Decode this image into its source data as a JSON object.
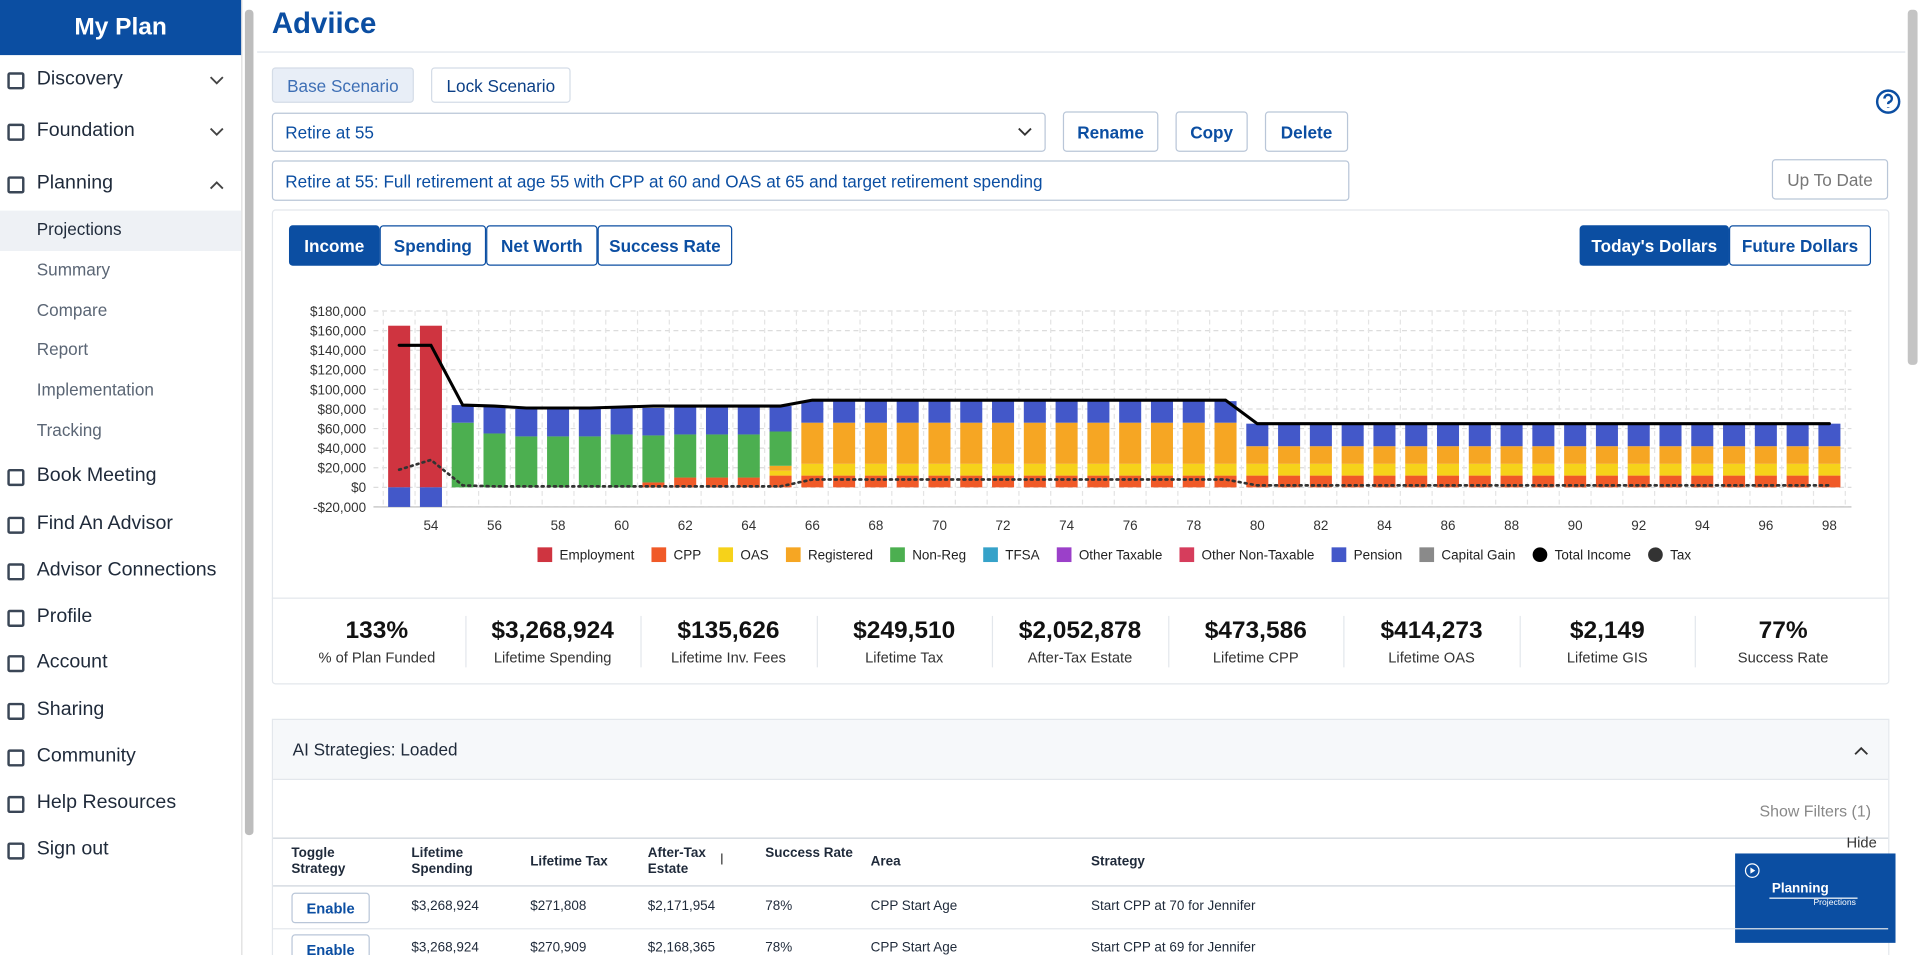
{
  "sidebar": {
    "title": "My Plan",
    "menu": [
      "Discovery",
      "Foundation",
      "Planning"
    ],
    "planning_items": [
      "Projections",
      "Summary",
      "Compare",
      "Report",
      "Implementation",
      "Tracking"
    ],
    "links": [
      "Book Meeting",
      "Find An Advisor",
      "Advisor Connections",
      "Profile",
      "Account",
      "Sharing",
      "Community",
      "Help Resources",
      "Sign out"
    ]
  },
  "header": {
    "title": "Adviice"
  },
  "scenario": {
    "tabs": [
      "Base Scenario",
      "Lock Scenario"
    ],
    "selected": "Retire at 55",
    "actions": [
      "Rename",
      "Copy",
      "Delete"
    ],
    "description": "Retire at 55: Full retirement at age 55 with CPP at 60 and OAS at 65 and target retirement spending",
    "status": "Up To Date"
  },
  "views": [
    "Income",
    "Spending",
    "Net Worth",
    "Success Rate"
  ],
  "dollars": [
    "Today's Dollars",
    "Future Dollars"
  ],
  "chart_data": {
    "type": "bar",
    "stacked": true,
    "categories": [
      null,
      "54",
      null,
      "56",
      null,
      "58",
      null,
      "60",
      null,
      "62",
      null,
      "64",
      null,
      "66",
      null,
      "68",
      null,
      "70",
      null,
      "72",
      null,
      "74",
      null,
      "76",
      null,
      "78",
      null,
      "80",
      null,
      "82",
      null,
      "84",
      null,
      "86",
      null,
      "88",
      null,
      "90",
      null,
      "92",
      null,
      "94",
      null,
      "96",
      null,
      "98"
    ],
    "ylim": [
      -20000,
      180000
    ],
    "yticks": [
      {
        "value": -20000,
        "label": "-$20,000"
      },
      {
        "value": 0,
        "label": "$0"
      },
      {
        "value": 20000,
        "label": "$20,000"
      },
      {
        "value": 40000,
        "label": "$40,000"
      },
      {
        "value": 60000,
        "label": "$60,000"
      },
      {
        "value": 80000,
        "label": "$80,000"
      },
      {
        "value": 100000,
        "label": "$100,000"
      },
      {
        "value": 120000,
        "label": "$120,000"
      },
      {
        "value": 140000,
        "label": "$140,000"
      },
      {
        "value": 160000,
        "label": "$160,000"
      },
      {
        "value": 180000,
        "label": "$180,000"
      }
    ],
    "grid": true,
    "series": [
      {
        "name": "Employment",
        "color": "#cf3440",
        "values": [
          165000,
          165000,
          0,
          0,
          0,
          0,
          0,
          0,
          0,
          0,
          0,
          0,
          0,
          0,
          0,
          0,
          0,
          0,
          0,
          0,
          0,
          0,
          0,
          0,
          0,
          0,
          0,
          0,
          0,
          0,
          0,
          0,
          0,
          0,
          0,
          0,
          0,
          0,
          0,
          0,
          0,
          0,
          0,
          0,
          0,
          0
        ]
      },
      {
        "name": "CPP",
        "color": "#f05a28",
        "values": [
          0,
          0,
          0,
          0,
          0,
          0,
          0,
          0,
          5000,
          10000,
          10000,
          10000,
          12000,
          12000,
          12000,
          12000,
          12000,
          12000,
          12000,
          12000,
          12000,
          12000,
          12000,
          12000,
          12000,
          12000,
          12000,
          12000,
          12000,
          12000,
          12000,
          12000,
          12000,
          12000,
          12000,
          12000,
          12000,
          12000,
          12000,
          12000,
          12000,
          12000,
          12000,
          12000,
          12000,
          12000
        ]
      },
      {
        "name": "OAS",
        "color": "#f6d21a",
        "values": [
          0,
          0,
          0,
          0,
          0,
          0,
          0,
          0,
          0,
          0,
          0,
          0,
          5000,
          12000,
          12000,
          12000,
          12000,
          12000,
          12000,
          12000,
          12000,
          12000,
          12000,
          12000,
          12000,
          12000,
          12000,
          12000,
          12000,
          12000,
          12000,
          12000,
          12000,
          12000,
          12000,
          12000,
          12000,
          12000,
          12000,
          12000,
          12000,
          12000,
          12000,
          12000,
          12000,
          12000
        ]
      },
      {
        "name": "Registered",
        "color": "#f6a623",
        "values": [
          0,
          0,
          0,
          0,
          0,
          0,
          0,
          0,
          0,
          0,
          0,
          0,
          5000,
          42000,
          42000,
          42000,
          42000,
          42000,
          42000,
          42000,
          42000,
          42000,
          42000,
          42000,
          42000,
          42000,
          42000,
          18000,
          18000,
          18000,
          18000,
          18000,
          18000,
          18000,
          18000,
          18000,
          18000,
          18000,
          18000,
          18000,
          18000,
          18000,
          18000,
          18000,
          18000,
          18000
        ]
      },
      {
        "name": "Non-Reg",
        "color": "#4caf50",
        "values": [
          0,
          0,
          66000,
          55000,
          52000,
          52000,
          52000,
          54000,
          48000,
          44000,
          44000,
          44000,
          35000,
          0,
          0,
          0,
          0,
          0,
          0,
          0,
          0,
          0,
          0,
          0,
          0,
          0,
          0,
          0,
          0,
          0,
          0,
          0,
          0,
          0,
          0,
          0,
          0,
          0,
          0,
          0,
          0,
          0,
          0,
          0,
          0,
          0
        ]
      },
      {
        "name": "TFSA",
        "color": "#36a2c9",
        "values": [
          0,
          0,
          0,
          0,
          0,
          0,
          0,
          0,
          0,
          0,
          0,
          0,
          0,
          0,
          0,
          0,
          0,
          0,
          0,
          0,
          0,
          0,
          0,
          0,
          0,
          0,
          0,
          0,
          0,
          0,
          0,
          0,
          0,
          0,
          0,
          0,
          0,
          0,
          0,
          0,
          0,
          0,
          0,
          0,
          0,
          0
        ]
      },
      {
        "name": "Other Taxable",
        "color": "#9b40c9",
        "values": [
          0,
          0,
          0,
          0,
          0,
          0,
          0,
          0,
          0,
          0,
          0,
          0,
          0,
          0,
          0,
          0,
          0,
          0,
          0,
          0,
          0,
          0,
          0,
          0,
          0,
          0,
          0,
          0,
          0,
          0,
          0,
          0,
          0,
          0,
          0,
          0,
          0,
          0,
          0,
          0,
          0,
          0,
          0,
          0,
          0,
          0
        ]
      },
      {
        "name": "Other Non-Taxable",
        "color": "#d63d5c",
        "values": [
          0,
          0,
          0,
          0,
          0,
          0,
          0,
          0,
          0,
          0,
          0,
          0,
          0,
          0,
          0,
          0,
          0,
          0,
          0,
          0,
          0,
          0,
          0,
          0,
          0,
          0,
          0,
          0,
          0,
          0,
          0,
          0,
          0,
          0,
          0,
          0,
          0,
          0,
          0,
          0,
          0,
          0,
          0,
          0,
          0,
          0
        ]
      },
      {
        "name": "Pension",
        "color": "#4358c9",
        "values": [
          -20000,
          -20000,
          18000,
          28000,
          28000,
          28000,
          28000,
          28000,
          28000,
          28000,
          28000,
          28000,
          26000,
          22000,
          22000,
          22000,
          22000,
          22000,
          22000,
          22000,
          22000,
          22000,
          22000,
          22000,
          22000,
          22000,
          22000,
          23000,
          23000,
          23000,
          23000,
          23000,
          23000,
          23000,
          23000,
          23000,
          23000,
          23000,
          23000,
          23000,
          23000,
          23000,
          23000,
          23000,
          23000,
          23000
        ]
      },
      {
        "name": "Capital Gain",
        "color": "#8a8a8a",
        "values": [
          0,
          0,
          0,
          0,
          0,
          0,
          0,
          0,
          0,
          0,
          0,
          0,
          0,
          0,
          0,
          0,
          0,
          0,
          0,
          0,
          0,
          0,
          0,
          0,
          0,
          0,
          0,
          0,
          0,
          0,
          0,
          0,
          0,
          0,
          0,
          0,
          0,
          0,
          0,
          0,
          0,
          0,
          0,
          0,
          0,
          0
        ]
      }
    ],
    "line_series": [
      {
        "name": "Total Income",
        "color": "#000000",
        "dotted": false,
        "values": [
          145000,
          145000,
          84000,
          83000,
          81000,
          81000,
          81000,
          82000,
          83000,
          83000,
          83000,
          83000,
          83000,
          89000,
          89000,
          89000,
          89000,
          89000,
          89000,
          89000,
          89000,
          89000,
          89000,
          89000,
          89000,
          89000,
          89000,
          65000,
          65000,
          65000,
          65000,
          65000,
          65000,
          65000,
          65000,
          65000,
          65000,
          65000,
          65000,
          65000,
          65000,
          65000,
          65000,
          65000,
          65000,
          65000
        ]
      },
      {
        "name": "Tax",
        "color": "#333333",
        "dotted": true,
        "values": [
          18000,
          28000,
          2000,
          1000,
          1000,
          1000,
          1000,
          1000,
          1000,
          1000,
          1000,
          1000,
          1000,
          8000,
          8000,
          8000,
          8000,
          8000,
          8000,
          8000,
          8000,
          8000,
          8000,
          8000,
          8000,
          8000,
          8000,
          2000,
          2000,
          2000,
          2000,
          2000,
          2000,
          2000,
          2000,
          2000,
          2000,
          2000,
          2000,
          2000,
          2000,
          2000,
          2000,
          2000,
          2000,
          2000
        ]
      }
    ]
  },
  "stats": [
    {
      "value": "133%",
      "label": "% of Plan Funded"
    },
    {
      "value": "$3,268,924",
      "label": "Lifetime Spending"
    },
    {
      "value": "$135,626",
      "label": "Lifetime Inv. Fees"
    },
    {
      "value": "$249,510",
      "label": "Lifetime Tax"
    },
    {
      "value": "$2,052,878",
      "label": "After-Tax Estate"
    },
    {
      "value": "$473,586",
      "label": "Lifetime CPP"
    },
    {
      "value": "$414,273",
      "label": "Lifetime OAS"
    },
    {
      "value": "$2,149",
      "label": "Lifetime GIS"
    },
    {
      "value": "77%",
      "label": "Success Rate"
    }
  ],
  "strategies": {
    "title": "AI Strategies: Loaded",
    "filters": "Show Filters (1)",
    "hide": "Hide",
    "columns": [
      "Toggle Strategy",
      "Lifetime Spending",
      "Lifetime Tax",
      "After-Tax Estate",
      "Success Rate",
      "Area",
      "Strategy"
    ],
    "rows": [
      [
        "Enable",
        "$3,268,924",
        "$271,808",
        "$2,171,954",
        "78%",
        "CPP Start Age",
        "Start CPP at 70 for Jennifer"
      ],
      [
        "Enable",
        "$3,268,924",
        "$270,909",
        "$2,168,365",
        "78%",
        "CPP Start Age",
        "Start CPP at 69 for Jennifer"
      ]
    ]
  },
  "video": {
    "title": "Planning",
    "subtitle": "Projections"
  }
}
